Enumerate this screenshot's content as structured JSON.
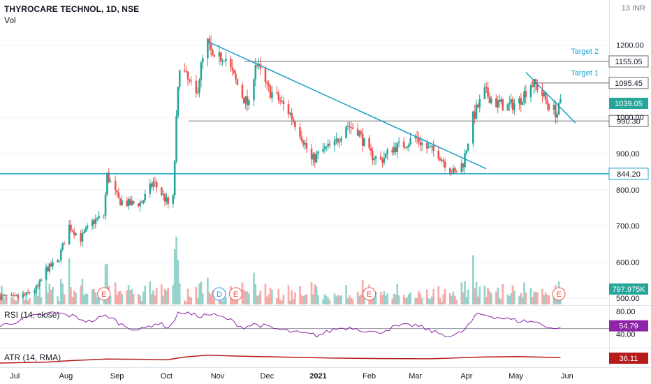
{
  "header": {
    "title": "THYROCARE TECHNOL, 1D, NSE",
    "volume_label": "Vol",
    "currency": "13 INR"
  },
  "colors": {
    "up": "#26a69a",
    "down": "#ef5350",
    "trendline": "#1fa0c8",
    "level": "#6e6e6e",
    "rsi": "#8e24aa",
    "atr": "#b71c1c",
    "vol_up": "#94d2cb",
    "vol_down": "#f7a9a7"
  },
  "chart_data": {
    "type": "candlestick",
    "title": "THYROCARE TECHNOL, 1D, NSE",
    "price_axis": {
      "ylim": [
        475,
        1325
      ],
      "ticks": [
        500,
        600,
        700,
        800,
        900,
        1000,
        1200
      ]
    },
    "time_axis": [
      "Jul",
      "Aug",
      "Sep",
      "Oct",
      "Nov",
      "Dec",
      "2021",
      "Feb",
      "Mar",
      "Apr",
      "May",
      "Jun"
    ],
    "price_path": [
      [
        "2020-06-22",
        505
      ],
      [
        "2020-07-01",
        500
      ],
      [
        "2020-07-08",
        510
      ],
      [
        "2020-07-15",
        530
      ],
      [
        "2020-07-20",
        580
      ],
      [
        "2020-07-27",
        600
      ],
      [
        "2020-08-03",
        700
      ],
      [
        "2020-08-10",
        665
      ],
      [
        "2020-08-17",
        710
      ],
      [
        "2020-08-24",
        730
      ],
      [
        "2020-08-26",
        840
      ],
      [
        "2020-09-02",
        770
      ],
      [
        "2020-09-09",
        760
      ],
      [
        "2020-09-16",
        765
      ],
      [
        "2020-09-23",
        820
      ],
      [
        "2020-09-28",
        790
      ],
      [
        "2020-10-02",
        760
      ],
      [
        "2020-10-05",
        775
      ],
      [
        "2020-10-07",
        990
      ],
      [
        "2020-10-09",
        1150
      ],
      [
        "2020-10-14",
        1100
      ],
      [
        "2020-10-19",
        1060
      ],
      [
        "2020-10-22",
        1140
      ],
      [
        "2020-10-26",
        1205
      ],
      [
        "2020-10-30",
        1150
      ],
      [
        "2020-11-05",
        1175
      ],
      [
        "2020-11-10",
        1120
      ],
      [
        "2020-11-16",
        1060
      ],
      [
        "2020-11-20",
        1030
      ],
      [
        "2020-11-24",
        1155
      ],
      [
        "2020-12-01",
        1080
      ],
      [
        "2020-12-08",
        1050
      ],
      [
        "2020-12-15",
        1010
      ],
      [
        "2020-12-21",
        960
      ],
      [
        "2020-12-28",
        880
      ],
      [
        "2021-01-04",
        910
      ],
      [
        "2021-01-11",
        925
      ],
      [
        "2021-01-18",
        980
      ],
      [
        "2021-01-25",
        965
      ],
      [
        "2021-02-01",
        900
      ],
      [
        "2021-02-08",
        880
      ],
      [
        "2021-02-15",
        915
      ],
      [
        "2021-02-22",
        925
      ],
      [
        "2021-03-01",
        945
      ],
      [
        "2021-03-08",
        915
      ],
      [
        "2021-03-15",
        900
      ],
      [
        "2021-03-22",
        855
      ],
      [
        "2021-03-25",
        845
      ],
      [
        "2021-03-30",
        875
      ],
      [
        "2021-04-05",
        1000
      ],
      [
        "2021-04-12",
        1070
      ],
      [
        "2021-04-19",
        1040
      ],
      [
        "2021-04-26",
        1030
      ],
      [
        "2021-05-03",
        1045
      ],
      [
        "2021-05-10",
        1095
      ],
      [
        "2021-05-14",
        1085
      ],
      [
        "2021-05-20",
        1040
      ],
      [
        "2021-05-26",
        1010
      ],
      [
        "2021-05-28",
        1039
      ]
    ],
    "levels": [
      {
        "price": 1155.05,
        "label": "1155.05",
        "name": "Target 2"
      },
      {
        "price": 1095.45,
        "label": "1095.45",
        "name": "Target 1"
      },
      {
        "price": 990.3,
        "label": "990.30",
        "name": ""
      },
      {
        "price": 844.2,
        "label": "844.20",
        "name": ""
      }
    ],
    "last_price": {
      "value": 1039.05,
      "label": "1039.05"
    },
    "volume": {
      "last_label": "797.975K",
      "earnings_marker": "E",
      "dividend_marker": "D"
    },
    "events": [
      {
        "date": "2020-08-24",
        "type": "E"
      },
      {
        "date": "2020-11-02",
        "type": "D"
      },
      {
        "date": "2020-11-12",
        "type": "E"
      },
      {
        "date": "2021-02-01",
        "type": "E"
      },
      {
        "date": "2021-05-27",
        "type": "E"
      }
    ],
    "trendlines": [
      {
        "from": [
          "2020-10-26",
          1210
        ],
        "to": [
          "2021-04-13",
          858
        ]
      },
      {
        "from": [
          "2021-05-07",
          1125
        ],
        "to": [
          "2021-06-06",
          985
        ]
      }
    ],
    "rsi": {
      "label": "RSI (14, close)",
      "value_label": "54.79",
      "ticks": [
        80,
        40
      ],
      "ylim": [
        20,
        90
      ],
      "level": 50,
      "path": [
        [
          "2020-06-22",
          54
        ],
        [
          "2020-07-10",
          70
        ],
        [
          "2020-07-25",
          78
        ],
        [
          "2020-08-05",
          72
        ],
        [
          "2020-08-15",
          62
        ],
        [
          "2020-08-26",
          73
        ],
        [
          "2020-09-05",
          55
        ],
        [
          "2020-09-15",
          47
        ],
        [
          "2020-09-25",
          60
        ],
        [
          "2020-10-03",
          52
        ],
        [
          "2020-10-09",
          80
        ],
        [
          "2020-10-20",
          72
        ],
        [
          "2020-10-28",
          75
        ],
        [
          "2020-11-08",
          66
        ],
        [
          "2020-11-16",
          52
        ],
        [
          "2020-11-24",
          58
        ],
        [
          "2020-12-05",
          50
        ],
        [
          "2020-12-20",
          42
        ],
        [
          "2021-01-01",
          38
        ],
        [
          "2021-01-12",
          50
        ],
        [
          "2021-01-22",
          52
        ],
        [
          "2021-02-05",
          42
        ],
        [
          "2021-02-18",
          54
        ],
        [
          "2021-03-01",
          56
        ],
        [
          "2021-03-12",
          44
        ],
        [
          "2021-03-24",
          36
        ],
        [
          "2021-03-31",
          48
        ],
        [
          "2021-04-08",
          76
        ],
        [
          "2021-04-20",
          70
        ],
        [
          "2021-05-01",
          64
        ],
        [
          "2021-05-12",
          62
        ],
        [
          "2021-05-20",
          54
        ],
        [
          "2021-05-26",
          48
        ],
        [
          "2021-05-28",
          54.79
        ]
      ]
    },
    "atr": {
      "label": "ATR (14, RMA)",
      "value_label": "36.11",
      "ylim": [
        0,
        70
      ],
      "path": [
        [
          "2020-06-22",
          14
        ],
        [
          "2020-07-20",
          18
        ],
        [
          "2020-08-05",
          24
        ],
        [
          "2020-08-26",
          30
        ],
        [
          "2020-09-15",
          29
        ],
        [
          "2020-10-01",
          27
        ],
        [
          "2020-10-12",
          38
        ],
        [
          "2020-10-26",
          46
        ],
        [
          "2020-11-12",
          42
        ],
        [
          "2020-12-10",
          38
        ],
        [
          "2021-01-10",
          34
        ],
        [
          "2021-02-10",
          32
        ],
        [
          "2021-03-10",
          31
        ],
        [
          "2021-04-10",
          38
        ],
        [
          "2021-05-01",
          40
        ],
        [
          "2021-05-28",
          36.11
        ]
      ]
    }
  }
}
